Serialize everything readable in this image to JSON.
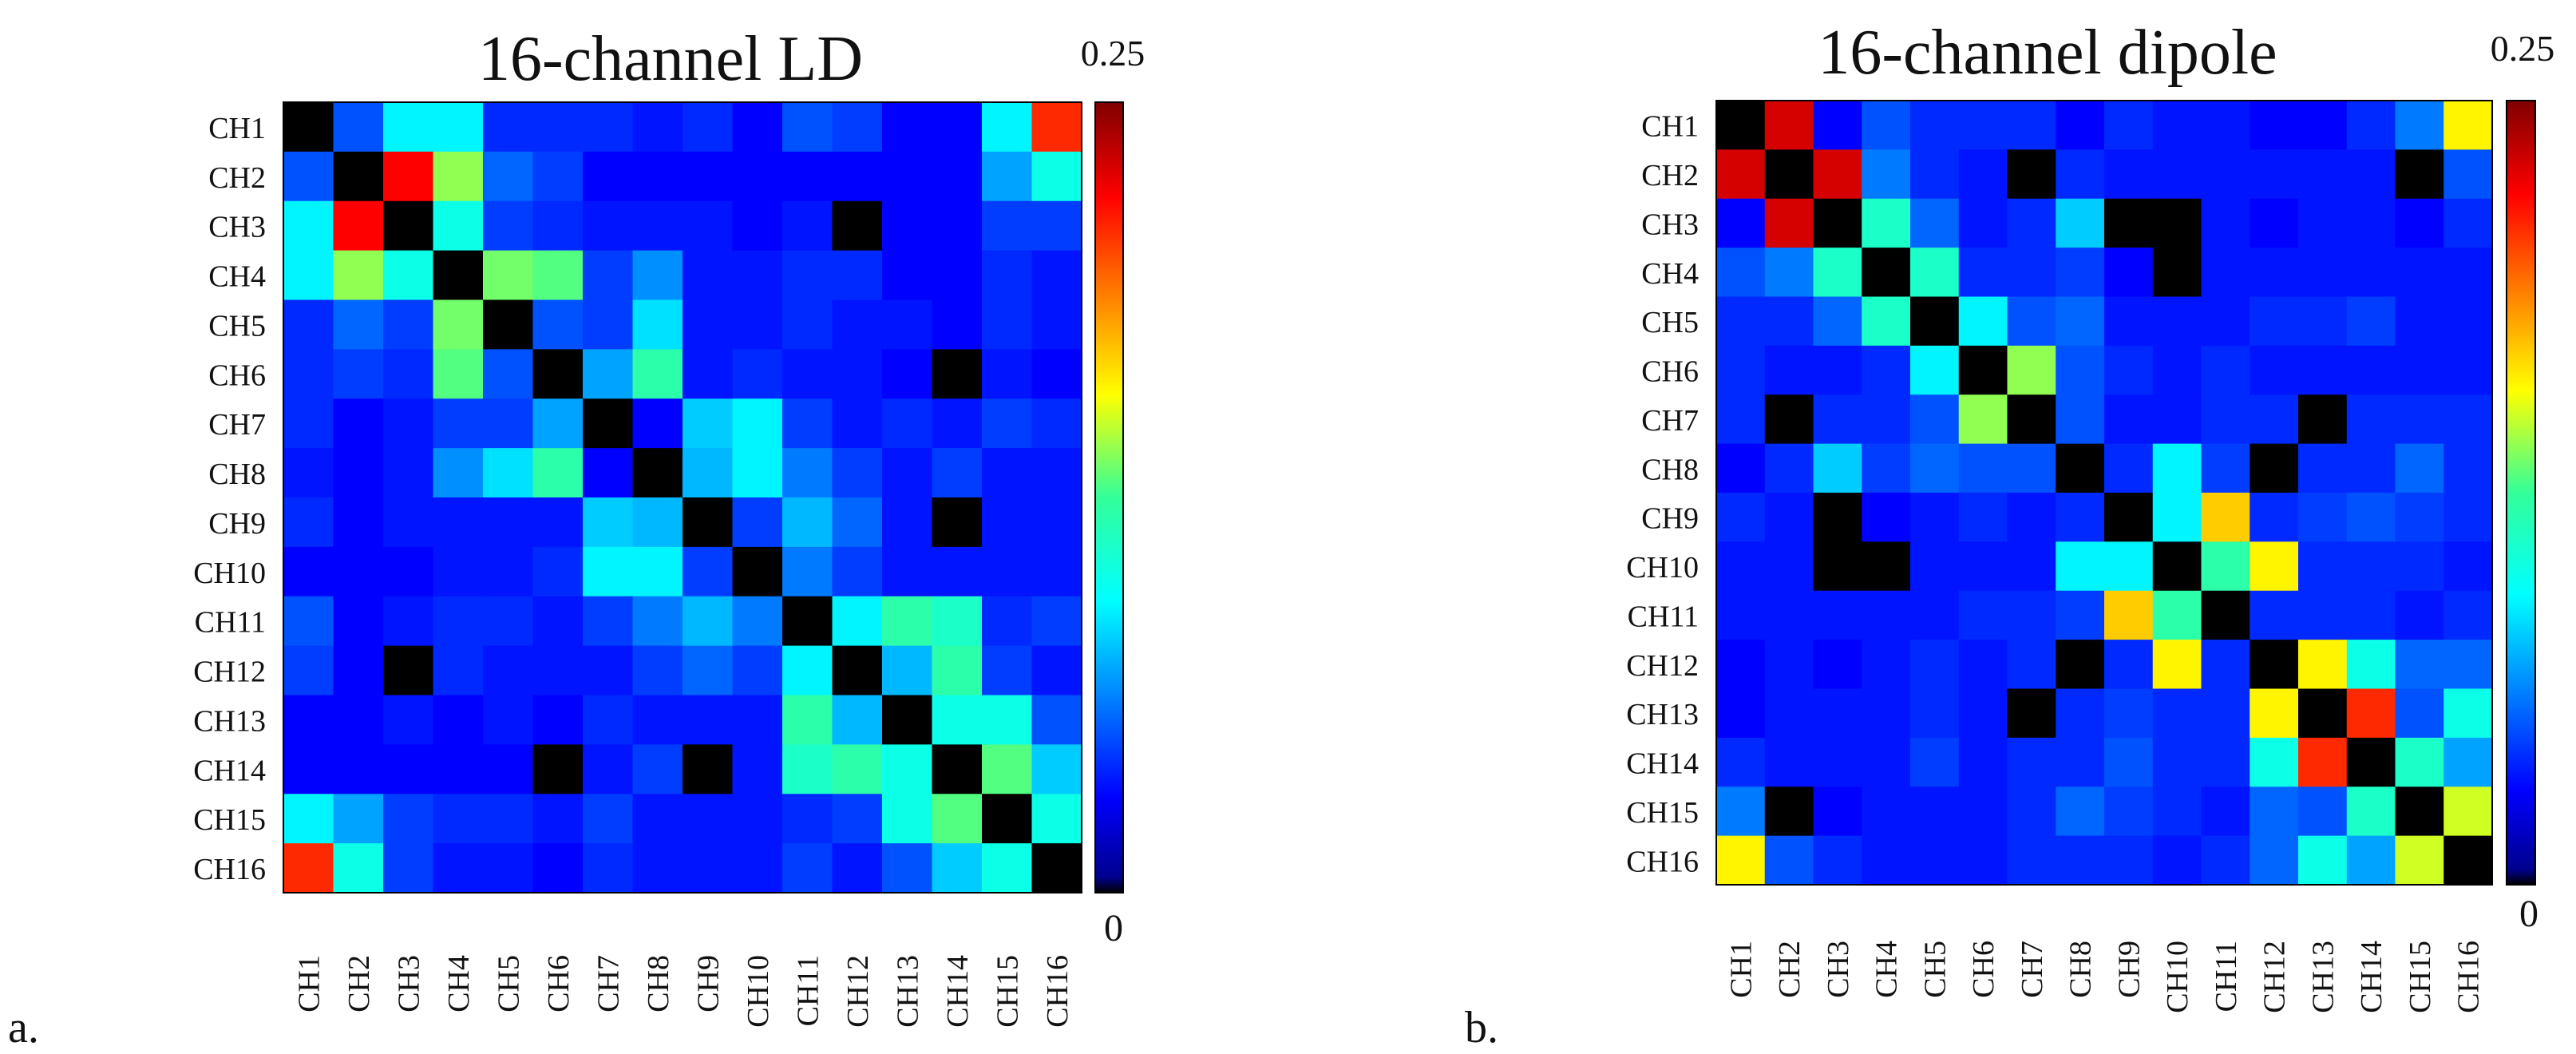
{
  "figure": {
    "panel_a_label": "a.",
    "panel_b_label": "b."
  },
  "colormap": "jet",
  "chart_data": [
    {
      "type": "heatmap",
      "title": "16-channel LD",
      "colorbar_max_label": "0.25",
      "colorbar_min_label": "0",
      "vmin": 0,
      "vmax": 0.25,
      "diagonal_value": 0,
      "row_labels": [
        "CH1",
        "CH2",
        "CH3",
        "CH4",
        "CH5",
        "CH6",
        "CH7",
        "CH8",
        "CH9",
        "CH10",
        "CH11",
        "CH12",
        "CH13",
        "CH14",
        "CH15",
        "CH16"
      ],
      "col_labels": [
        "CH1",
        "CH2",
        "CH3",
        "CH4",
        "CH5",
        "CH6",
        "CH7",
        "CH8",
        "CH9",
        "CH10",
        "CH11",
        "CH12",
        "CH13",
        "CH14",
        "CH15",
        "CH16"
      ],
      "values": [
        [
          0.0,
          0.05,
          0.09,
          0.09,
          0.04,
          0.04,
          0.04,
          0.035,
          0.04,
          0.03,
          0.05,
          0.045,
          0.03,
          0.03,
          0.09,
          0.21
        ],
        [
          0.05,
          0.0,
          0.22,
          0.14,
          0.055,
          0.045,
          0.03,
          0.03,
          0.03,
          0.03,
          0.03,
          0.03,
          0.03,
          0.03,
          0.07,
          0.1
        ],
        [
          0.09,
          0.22,
          0.0,
          0.1,
          0.045,
          0.04,
          0.035,
          0.035,
          0.035,
          0.03,
          0.035,
          0.0,
          0.03,
          0.03,
          0.045,
          0.045
        ],
        [
          0.09,
          0.14,
          0.1,
          0.0,
          0.135,
          0.13,
          0.045,
          0.065,
          0.035,
          0.035,
          0.04,
          0.04,
          0.03,
          0.03,
          0.04,
          0.035
        ],
        [
          0.04,
          0.055,
          0.045,
          0.135,
          0.0,
          0.05,
          0.045,
          0.085,
          0.035,
          0.035,
          0.04,
          0.035,
          0.035,
          0.03,
          0.04,
          0.035
        ],
        [
          0.04,
          0.045,
          0.04,
          0.13,
          0.05,
          0.0,
          0.07,
          0.12,
          0.035,
          0.04,
          0.035,
          0.035,
          0.03,
          0.0,
          0.035,
          0.03
        ],
        [
          0.04,
          0.03,
          0.035,
          0.045,
          0.045,
          0.07,
          0.0,
          0.03,
          0.08,
          0.09,
          0.045,
          0.035,
          0.04,
          0.035,
          0.045,
          0.04
        ],
        [
          0.035,
          0.03,
          0.035,
          0.065,
          0.085,
          0.12,
          0.03,
          0.0,
          0.075,
          0.09,
          0.06,
          0.045,
          0.035,
          0.045,
          0.035,
          0.035
        ],
        [
          0.04,
          0.03,
          0.035,
          0.035,
          0.035,
          0.035,
          0.08,
          0.075,
          0.0,
          0.045,
          0.075,
          0.055,
          0.035,
          0.0,
          0.035,
          0.035
        ],
        [
          0.03,
          0.03,
          0.03,
          0.035,
          0.035,
          0.04,
          0.09,
          0.09,
          0.045,
          0.0,
          0.06,
          0.045,
          0.035,
          0.035,
          0.035,
          0.035
        ],
        [
          0.05,
          0.03,
          0.035,
          0.04,
          0.04,
          0.035,
          0.045,
          0.06,
          0.075,
          0.06,
          0.0,
          0.09,
          0.12,
          0.11,
          0.04,
          0.045
        ],
        [
          0.045,
          0.03,
          0.0,
          0.04,
          0.035,
          0.035,
          0.035,
          0.045,
          0.055,
          0.045,
          0.09,
          0.0,
          0.075,
          0.12,
          0.045,
          0.035
        ],
        [
          0.03,
          0.03,
          0.035,
          0.03,
          0.035,
          0.03,
          0.04,
          0.035,
          0.035,
          0.035,
          0.12,
          0.075,
          0.0,
          0.1,
          0.1,
          0.05
        ],
        [
          0.03,
          0.03,
          0.03,
          0.03,
          0.03,
          0.0,
          0.035,
          0.045,
          0.0,
          0.035,
          0.11,
          0.12,
          0.1,
          0.0,
          0.13,
          0.08
        ],
        [
          0.09,
          0.07,
          0.045,
          0.04,
          0.04,
          0.035,
          0.045,
          0.035,
          0.035,
          0.035,
          0.04,
          0.045,
          0.1,
          0.13,
          0.0,
          0.1
        ],
        [
          0.21,
          0.1,
          0.045,
          0.035,
          0.035,
          0.03,
          0.04,
          0.035,
          0.035,
          0.035,
          0.045,
          0.035,
          0.05,
          0.08,
          0.1,
          0.0
        ]
      ]
    },
    {
      "type": "heatmap",
      "title": "16-channel dipole",
      "colorbar_max_label": "0.25",
      "colorbar_min_label": "0",
      "vmin": 0,
      "vmax": 0.25,
      "diagonal_value": 0,
      "row_labels": [
        "CH1",
        "CH2",
        "CH3",
        "CH4",
        "CH5",
        "CH6",
        "CH7",
        "CH8",
        "CH9",
        "CH10",
        "CH11",
        "CH12",
        "CH13",
        "CH14",
        "CH15",
        "CH16"
      ],
      "col_labels": [
        "CH1",
        "CH2",
        "CH3",
        "CH4",
        "CH5",
        "CH6",
        "CH7",
        "CH8",
        "CH9",
        "CH10",
        "CH11",
        "CH12",
        "CH13",
        "CH14",
        "CH15",
        "CH16"
      ],
      "values": [
        [
          0.0,
          0.23,
          0.03,
          0.05,
          0.04,
          0.04,
          0.04,
          0.03,
          0.04,
          0.035,
          0.035,
          0.03,
          0.03,
          0.04,
          0.06,
          0.16
        ],
        [
          0.23,
          0.0,
          0.23,
          0.06,
          0.04,
          0.035,
          0.0,
          0.04,
          0.035,
          0.035,
          0.035,
          0.035,
          0.035,
          0.035,
          0.0,
          0.05
        ],
        [
          0.03,
          0.23,
          0.0,
          0.11,
          0.055,
          0.035,
          0.04,
          0.08,
          0.0,
          0.0,
          0.035,
          0.03,
          0.035,
          0.035,
          0.03,
          0.04
        ],
        [
          0.05,
          0.06,
          0.11,
          0.0,
          0.11,
          0.04,
          0.04,
          0.045,
          0.03,
          0.0,
          0.035,
          0.035,
          0.035,
          0.035,
          0.035,
          0.035
        ],
        [
          0.04,
          0.04,
          0.055,
          0.11,
          0.0,
          0.09,
          0.05,
          0.055,
          0.035,
          0.035,
          0.035,
          0.04,
          0.04,
          0.045,
          0.035,
          0.035
        ],
        [
          0.04,
          0.035,
          0.035,
          0.04,
          0.09,
          0.0,
          0.14,
          0.05,
          0.04,
          0.035,
          0.04,
          0.035,
          0.035,
          0.035,
          0.035,
          0.035
        ],
        [
          0.04,
          0.0,
          0.04,
          0.04,
          0.05,
          0.14,
          0.0,
          0.05,
          0.035,
          0.035,
          0.04,
          0.04,
          0.0,
          0.04,
          0.04,
          0.04
        ],
        [
          0.03,
          0.04,
          0.08,
          0.045,
          0.055,
          0.05,
          0.05,
          0.0,
          0.04,
          0.09,
          0.045,
          0.0,
          0.04,
          0.04,
          0.055,
          0.04
        ],
        [
          0.04,
          0.035,
          0.0,
          0.03,
          0.035,
          0.04,
          0.035,
          0.04,
          0.0,
          0.09,
          0.17,
          0.04,
          0.045,
          0.05,
          0.045,
          0.04
        ],
        [
          0.035,
          0.035,
          0.0,
          0.0,
          0.035,
          0.035,
          0.035,
          0.09,
          0.09,
          0.0,
          0.12,
          0.16,
          0.04,
          0.04,
          0.04,
          0.035
        ],
        [
          0.035,
          0.035,
          0.035,
          0.035,
          0.035,
          0.04,
          0.04,
          0.045,
          0.17,
          0.12,
          0.0,
          0.04,
          0.04,
          0.04,
          0.035,
          0.04
        ],
        [
          0.03,
          0.035,
          0.03,
          0.035,
          0.04,
          0.035,
          0.04,
          0.0,
          0.04,
          0.16,
          0.04,
          0.0,
          0.16,
          0.1,
          0.055,
          0.055
        ],
        [
          0.03,
          0.035,
          0.035,
          0.035,
          0.04,
          0.035,
          0.0,
          0.04,
          0.045,
          0.04,
          0.04,
          0.16,
          0.0,
          0.21,
          0.05,
          0.1
        ],
        [
          0.04,
          0.035,
          0.035,
          0.035,
          0.045,
          0.035,
          0.04,
          0.04,
          0.05,
          0.04,
          0.04,
          0.1,
          0.21,
          0.0,
          0.11,
          0.07
        ],
        [
          0.06,
          0.0,
          0.03,
          0.035,
          0.035,
          0.035,
          0.04,
          0.055,
          0.045,
          0.04,
          0.035,
          0.055,
          0.05,
          0.11,
          0.0,
          0.15
        ],
        [
          0.16,
          0.05,
          0.04,
          0.035,
          0.035,
          0.035,
          0.04,
          0.04,
          0.04,
          0.035,
          0.04,
          0.055,
          0.1,
          0.07,
          0.15,
          0.0
        ]
      ]
    }
  ]
}
